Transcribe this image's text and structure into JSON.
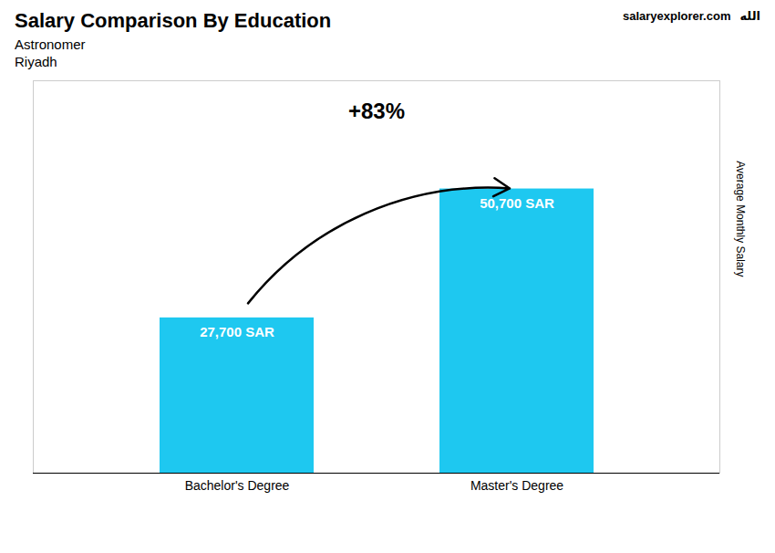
{
  "chart_data": {
    "type": "bar",
    "title": "Salary Comparison By Education",
    "subtitle": [
      "Astronomer",
      "Riyadh"
    ],
    "categories": [
      "Bachelor's Degree",
      "Master's Degree"
    ],
    "values": [
      27700,
      50700
    ],
    "value_labels": [
      "27,700 SAR",
      "50,700 SAR"
    ],
    "data_labels": true,
    "color": "#1EC8F0",
    "ylabel": "Average Monthly Salary",
    "ylim": [
      0,
      70000
    ],
    "tick_labels": "x",
    "annotations": [
      "+83%",
      "salaryexplorer.com",
      "الله"
    ]
  }
}
